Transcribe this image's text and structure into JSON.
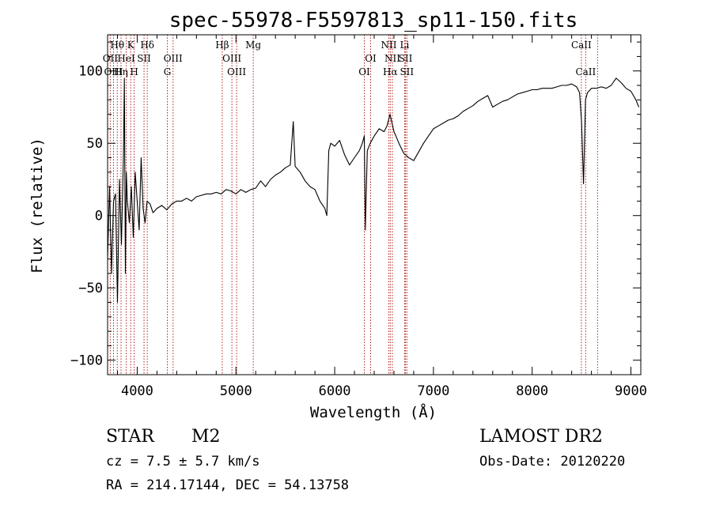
{
  "chart_data": {
    "type": "line",
    "title": "spec-55978-F5597813_sp11-150.fits",
    "xlabel": "Wavelength (Å)",
    "ylabel": "Flux (relative)",
    "xlim": [
      3700,
      9100
    ],
    "ylim": [
      -110,
      125
    ],
    "xticks": [
      4000,
      5000,
      6000,
      7000,
      8000,
      9000
    ],
    "yticks": [
      -100,
      -50,
      0,
      50,
      100
    ],
    "line_color": "#000000",
    "marker_color": "#b22222",
    "series": [
      {
        "x": [
          3700,
          3720,
          3740,
          3760,
          3780,
          3800,
          3820,
          3840,
          3860,
          3870,
          3880,
          3890,
          3900,
          3920,
          3940,
          3960,
          3980,
          4000,
          4020,
          4040,
          4060,
          4080,
          4100,
          4130,
          4160,
          4200,
          4250,
          4300,
          4350,
          4400,
          4450,
          4500,
          4550,
          4600,
          4650,
          4700,
          4750,
          4800,
          4850,
          4900,
          4950,
          5000,
          5050,
          5100,
          5150,
          5200,
          5250,
          5300,
          5350,
          5400,
          5450,
          5500,
          5550,
          5580,
          5600,
          5650,
          5700,
          5750,
          5800,
          5850,
          5900,
          5920,
          5940,
          5960,
          6000,
          6050,
          6100,
          6150,
          6200,
          6250,
          6280,
          6300,
          6310,
          6330,
          6360,
          6400,
          6450,
          6500,
          6530,
          6560,
          6580,
          6600,
          6620,
          6650,
          6700,
          6750,
          6800,
          6850,
          6900,
          6950,
          7000,
          7050,
          7100,
          7150,
          7200,
          7250,
          7300,
          7350,
          7400,
          7450,
          7500,
          7550,
          7600,
          7650,
          7700,
          7750,
          7800,
          7850,
          7900,
          7950,
          8000,
          8050,
          8100,
          8150,
          8200,
          8250,
          8300,
          8350,
          8400,
          8450,
          8480,
          8500,
          8520,
          8540,
          8560,
          8600,
          8650,
          8700,
          8750,
          8800,
          8850,
          8900,
          8950,
          9000,
          9050,
          9080
        ],
        "y": [
          -30,
          20,
          -40,
          10,
          15,
          -60,
          25,
          -20,
          40,
          95,
          -40,
          30,
          10,
          -5,
          20,
          -15,
          30,
          10,
          -10,
          40,
          5,
          -5,
          10,
          8,
          2,
          5,
          7,
          4,
          8,
          10,
          10,
          12,
          10,
          13,
          14,
          15,
          15,
          16,
          15,
          18,
          17,
          15,
          18,
          16,
          18,
          19,
          24,
          20,
          25,
          28,
          30,
          33,
          35,
          65,
          34,
          30,
          24,
          20,
          18,
          10,
          5,
          0,
          45,
          50,
          48,
          52,
          42,
          35,
          40,
          45,
          50,
          55,
          -10,
          45,
          50,
          55,
          60,
          58,
          62,
          70,
          64,
          58,
          55,
          50,
          43,
          40,
          38,
          44,
          50,
          55,
          60,
          62,
          64,
          66,
          67,
          69,
          72,
          74,
          76,
          79,
          81,
          83,
          75,
          77,
          79,
          80,
          82,
          84,
          85,
          86,
          87,
          87,
          88,
          88,
          88,
          89,
          90,
          90,
          91,
          89,
          85,
          65,
          22,
          80,
          85,
          88,
          88,
          89,
          88,
          90,
          95,
          92,
          88,
          86,
          80,
          75
        ]
      }
    ],
    "line_markers": [
      {
        "name": "Hθ",
        "x": 3798,
        "row": 0
      },
      {
        "name": "K",
        "x": 3934,
        "row": 0
      },
      {
        "name": "Hδ",
        "x": 4102,
        "row": 0
      },
      {
        "name": "Hβ",
        "x": 4861,
        "row": 0
      },
      {
        "name": "Mg",
        "x": 5175,
        "row": 0
      },
      {
        "name": "NII",
        "x": 6548,
        "row": 0
      },
      {
        "name": "Li",
        "x": 6708,
        "row": 0
      },
      {
        "name": "CaII",
        "x": 8498,
        "row": 0
      },
      {
        "name": "OII",
        "x": 3727,
        "row": 1
      },
      {
        "name": "HeI",
        "x": 3889,
        "row": 1
      },
      {
        "name": "SII",
        "x": 4069,
        "row": 1
      },
      {
        "name": "OIII",
        "x": 4363,
        "row": 1
      },
      {
        "name": "OIII",
        "x": 4959,
        "row": 1
      },
      {
        "name": "OI",
        "x": 6364,
        "row": 1
      },
      {
        "name": "NII",
        "x": 6584,
        "row": 1
      },
      {
        "name": "SII",
        "x": 6717,
        "row": 1
      },
      {
        "name": "OIII",
        "x": 3760,
        "row": 2
      },
      {
        "name": "Hη",
        "x": 3836,
        "row": 2
      },
      {
        "name": "H",
        "x": 3969,
        "row": 2
      },
      {
        "name": "G",
        "x": 4305,
        "row": 2
      },
      {
        "name": "OIII",
        "x": 5007,
        "row": 2
      },
      {
        "name": "OI",
        "x": 6300,
        "row": 2
      },
      {
        "name": "Hα",
        "x": 6563,
        "row": 2
      },
      {
        "name": "SII",
        "x": 6731,
        "row": 2
      },
      {
        "name": "CaII",
        "x": 8542,
        "row": 2
      }
    ],
    "extra_marker_x": [
      8662
    ]
  },
  "info": {
    "object_type": "STAR",
    "subclass": "M2",
    "survey": "LAMOST DR2",
    "cz": "cz = 7.5 ± 5.7 km/s",
    "obs_date": "Obs-Date: 20120220",
    "coords": "RA = 214.17144, DEC =  54.13758"
  }
}
